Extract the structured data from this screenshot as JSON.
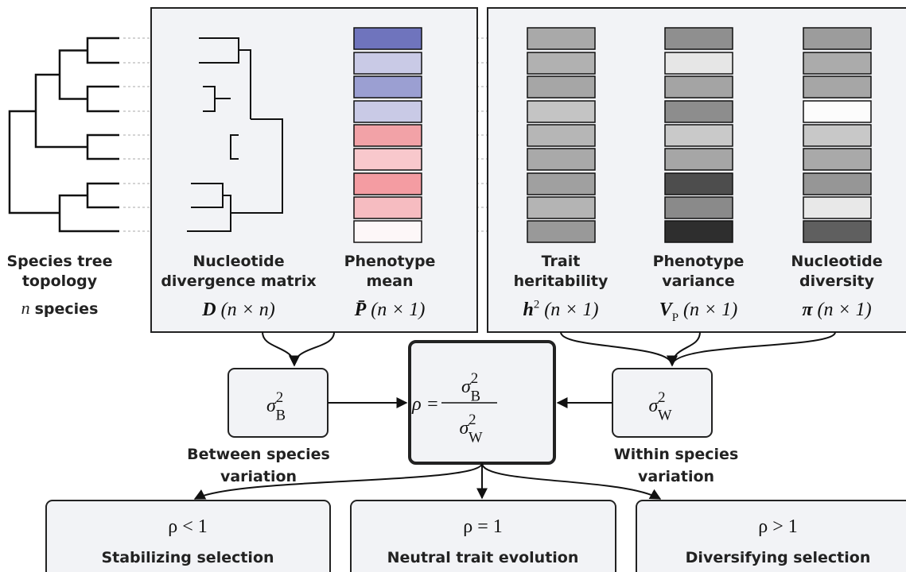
{
  "tree": {
    "caption_lines": [
      "Species tree",
      "topology"
    ],
    "count": {
      "symbol": "n",
      "text": "species"
    }
  },
  "panels": [
    {
      "columns": [
        {
          "name_lines": [
            "Nucleotide",
            "divergence matrix"
          ],
          "symbol": "D",
          "dims": "(n × n)"
        },
        {
          "name_lines": [
            "Phenotype",
            "mean"
          ],
          "symbol": "P̄",
          "dims": "(n × 1)"
        }
      ]
    },
    {
      "columns": [
        {
          "name_lines": [
            "Trait",
            "heritability"
          ],
          "symbol": "h",
          "sup": "2",
          "dims": "(n × 1)"
        },
        {
          "name_lines": [
            "Phenotype",
            "variance"
          ],
          "symbol": "V",
          "sub": "P",
          "dims": "(n × 1)"
        },
        {
          "name_lines": [
            "Nucleotide",
            "diversity"
          ],
          "symbol": "π",
          "dims": "(n × 1)"
        }
      ]
    }
  ],
  "between": {
    "symbol": "σ",
    "sup": "2",
    "sub": "B",
    "caption_lines": [
      "Between species",
      "variation"
    ]
  },
  "within": {
    "symbol": "σ",
    "sup": "2",
    "sub": "W",
    "caption_lines": [
      "Within species",
      "variation"
    ]
  },
  "ratio": {
    "lhs": "ρ =",
    "numerator": {
      "symbol": "σ",
      "sup": "2",
      "sub": "B"
    },
    "denominator": {
      "symbol": "σ",
      "sup": "2",
      "sub": "W"
    }
  },
  "outcomes": [
    {
      "formula": "ρ < 1",
      "label": "Stabilizing selection"
    },
    {
      "formula": "ρ = 1",
      "label": "Neutral trait evolution"
    },
    {
      "formula": "ρ > 1",
      "label": "Diversifying selection"
    }
  ]
}
